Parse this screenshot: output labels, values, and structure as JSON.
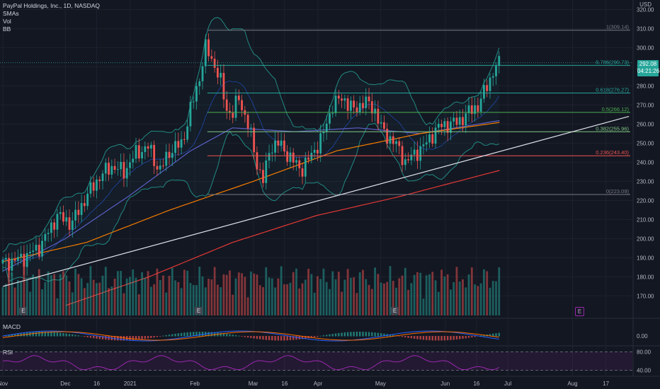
{
  "header": {
    "title": "PayPal Holdings, Inc., 1D, NASDAQ",
    "smas_label": "SMAs",
    "vol_label": "Vol",
    "bb_label": "BB"
  },
  "currency": "USD",
  "last_price": "292.08",
  "countdown": "04:21:26",
  "macd_label": "MACD",
  "rsi_label": "RSI",
  "earnings_badge": "E",
  "future_earnings_badge": "E",
  "colors": {
    "background": "#131722",
    "up": "#26a69a",
    "down": "#ef5350",
    "grid": "#1e222d",
    "sma_blue": "#5b5fc7",
    "sma_orange": "#f57c00",
    "sma_red": "#e53935",
    "bollinger": "#26a69a",
    "rsi": "#9c27b0",
    "trendline": "#e0e3eb"
  },
  "chart_data": [
    {
      "type": "candlestick",
      "title": "PayPal Holdings, Inc., 1D, NASDAQ",
      "y_unit": "USD",
      "y_ticks": [
        170,
        180,
        190,
        200,
        210,
        220,
        230,
        240,
        250,
        260,
        270,
        280,
        290,
        300,
        310,
        320
      ],
      "ylim": [
        162,
        322
      ],
      "x_ticks": [
        "Nov",
        "Dec",
        "16",
        "2021",
        "Feb",
        "Mar",
        "16",
        "Apr",
        "May",
        "Jun",
        "16",
        "Jul",
        "Aug",
        "17"
      ],
      "x_tick_days": [
        0,
        30,
        45,
        61,
        92,
        120,
        135,
        151,
        181,
        212,
        227,
        242,
        273,
        289
      ],
      "xlim_days": [
        0,
        300
      ],
      "fibonacci": [
        {
          "label": "1(309.14)",
          "level": 309.14,
          "color": "#787b86"
        },
        {
          "label": "0.786(290.73)",
          "level": 290.73,
          "color": "#26a69a"
        },
        {
          "label": "0.618(276.27)",
          "level": 276.27,
          "color": "#26a69a"
        },
        {
          "label": "0.5(266.12)",
          "level": 266.12,
          "color": "#4caf50"
        },
        {
          "label": "0.382(255.96)",
          "level": 255.96,
          "color": "#81c784"
        },
        {
          "label": "0.236(243.40)",
          "level": 243.4,
          "color": "#ef5350"
        },
        {
          "label": "0(223.09)",
          "level": 223.09,
          "color": "#787b86"
        }
      ],
      "fib_start_day": 98,
      "trendline": {
        "from": [
          0,
          175
        ],
        "to": [
          300,
          264
        ]
      },
      "anchors": [
        {
          "day": 0,
          "close": 187
        },
        {
          "day": 10,
          "close": 190
        },
        {
          "day": 18,
          "close": 196
        },
        {
          "day": 26,
          "close": 212
        },
        {
          "day": 33,
          "close": 208
        },
        {
          "day": 40,
          "close": 222
        },
        {
          "day": 46,
          "close": 232
        },
        {
          "day": 52,
          "close": 238
        },
        {
          "day": 58,
          "close": 235
        },
        {
          "day": 64,
          "close": 245
        },
        {
          "day": 70,
          "close": 248
        },
        {
          "day": 75,
          "close": 235
        },
        {
          "day": 80,
          "close": 246
        },
        {
          "day": 86,
          "close": 250
        },
        {
          "day": 90,
          "close": 268
        },
        {
          "day": 94,
          "close": 283
        },
        {
          "day": 97,
          "close": 300
        },
        {
          "day": 101,
          "close": 292
        },
        {
          "day": 104,
          "close": 284
        },
        {
          "day": 107,
          "close": 268
        },
        {
          "day": 110,
          "close": 265
        },
        {
          "day": 113,
          "close": 274
        },
        {
          "day": 118,
          "close": 258
        },
        {
          "day": 122,
          "close": 238
        },
        {
          "day": 125,
          "close": 230
        },
        {
          "day": 128,
          "close": 248
        },
        {
          "day": 132,
          "close": 250
        },
        {
          "day": 138,
          "close": 242
        },
        {
          "day": 143,
          "close": 236
        },
        {
          "day": 148,
          "close": 244
        },
        {
          "day": 153,
          "close": 253
        },
        {
          "day": 158,
          "close": 270
        },
        {
          "day": 163,
          "close": 274
        },
        {
          "day": 168,
          "close": 267
        },
        {
          "day": 173,
          "close": 272
        },
        {
          "day": 178,
          "close": 268
        },
        {
          "day": 182,
          "close": 256
        },
        {
          "day": 188,
          "close": 250
        },
        {
          "day": 193,
          "close": 240
        },
        {
          "day": 198,
          "close": 245
        },
        {
          "day": 203,
          "close": 250
        },
        {
          "day": 208,
          "close": 258
        },
        {
          "day": 213,
          "close": 260
        },
        {
          "day": 218,
          "close": 261
        },
        {
          "day": 223,
          "close": 266
        },
        {
          "day": 228,
          "close": 270
        },
        {
          "day": 232,
          "close": 280
        },
        {
          "day": 236,
          "close": 290
        },
        {
          "day": 239,
          "close": 292.08
        }
      ],
      "sma_fast_anchors": [
        {
          "day": 0,
          "close": 183
        },
        {
          "day": 30,
          "close": 200
        },
        {
          "day": 60,
          "close": 222
        },
        {
          "day": 90,
          "close": 246
        },
        {
          "day": 110,
          "close": 258
        },
        {
          "day": 140,
          "close": 256
        },
        {
          "day": 170,
          "close": 258
        },
        {
          "day": 200,
          "close": 255
        },
        {
          "day": 239,
          "close": 262
        }
      ],
      "sma_mid_anchors": [
        {
          "day": 0,
          "close": 188
        },
        {
          "day": 40,
          "close": 198
        },
        {
          "day": 80,
          "close": 215
        },
        {
          "day": 120,
          "close": 230
        },
        {
          "day": 160,
          "close": 246
        },
        {
          "day": 200,
          "close": 255
        },
        {
          "day": 239,
          "close": 261
        }
      ],
      "sma_slow_anchors": [
        {
          "day": 30,
          "close": 165
        },
        {
          "day": 70,
          "close": 180
        },
        {
          "day": 110,
          "close": 198
        },
        {
          "day": 150,
          "close": 212
        },
        {
          "day": 190,
          "close": 222
        },
        {
          "day": 239,
          "close": 236
        }
      ]
    },
    {
      "type": "bar",
      "title": "Vol",
      "note": "daily volume bars aligned to price candles"
    },
    {
      "type": "line",
      "title": "MACD",
      "y_ticks": [
        0.0
      ]
    },
    {
      "type": "line",
      "title": "RSI",
      "y_ticks": [
        80.0,
        40.0
      ],
      "ylim": [
        30,
        90
      ]
    }
  ]
}
